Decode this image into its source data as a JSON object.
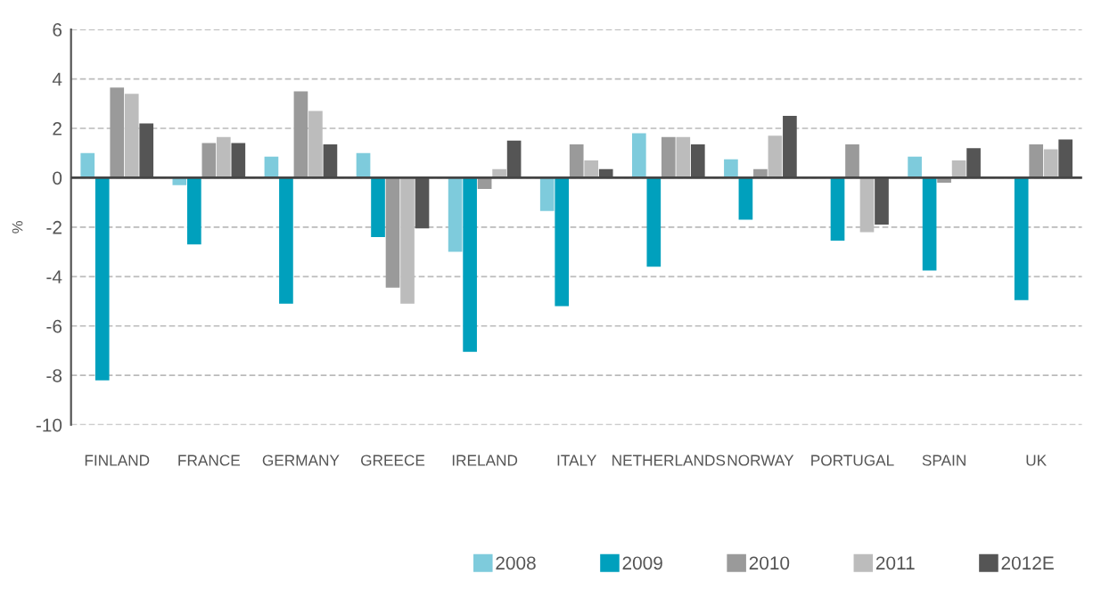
{
  "chart_data": {
    "type": "bar",
    "ylabel": "%",
    "categories": [
      "FINLAND",
      "FRANCE",
      "GERMANY",
      "GREECE",
      "IRELAND",
      "ITALY",
      "NETHERLANDS",
      "NORWAY",
      "PORTUGAL",
      "SPAIN",
      "UK"
    ],
    "series": [
      {
        "name": "2008",
        "color": "#7ecbdc",
        "values": [
          1.0,
          -0.3,
          0.85,
          1.0,
          -3.0,
          -1.35,
          1.8,
          0.75,
          null,
          0.85,
          null
        ]
      },
      {
        "name": "2009",
        "color": "#00a0bd",
        "values": [
          -8.2,
          -2.7,
          -5.1,
          -2.4,
          -7.05,
          -5.2,
          -3.6,
          -1.7,
          -2.55,
          -3.75,
          -4.95
        ]
      },
      {
        "name": "2010",
        "color": "#9a9a9a",
        "values": [
          3.65,
          1.4,
          3.5,
          -4.45,
          -0.45,
          1.35,
          1.65,
          0.35,
          1.35,
          -0.2,
          1.35
        ]
      },
      {
        "name": "2011",
        "color": "#bcbcbc",
        "values": [
          3.4,
          1.65,
          2.7,
          -5.1,
          0.35,
          0.7,
          1.65,
          1.7,
          -2.2,
          0.7,
          1.15
        ]
      },
      {
        "name": "2012E",
        "color": "#555555",
        "values": [
          2.2,
          1.4,
          1.35,
          -2.05,
          1.5,
          0.35,
          1.35,
          2.5,
          -1.9,
          1.2,
          1.55
        ]
      }
    ],
    "ylim": [
      -10,
      6
    ],
    "yticks": [
      -10,
      -8,
      -6,
      -4,
      -2,
      0,
      2,
      4,
      6
    ],
    "grid": "y",
    "legend": "bottom right"
  }
}
